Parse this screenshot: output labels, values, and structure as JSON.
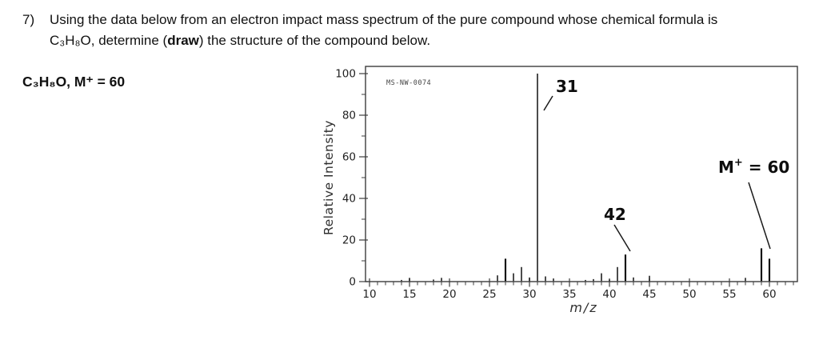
{
  "question": {
    "number": "7)",
    "line1": "Using the data below from an electron impact mass spectrum of the pure compound whose chemical formula is",
    "line2_pre": "C₃H₈O, determine (",
    "line2_bold": "draw",
    "line2_post": ") the structure of the compound below."
  },
  "formula_label": "C₃H₈O, M⁺ = 60",
  "chart_data": {
    "type": "bar",
    "subtype": "mass-spectrum",
    "watermark": "MS-NW-0074",
    "xlabel": "m/z",
    "ylabel": "Relative Intensity",
    "xlim": [
      10,
      63
    ],
    "ylim": [
      0,
      100
    ],
    "grid": false,
    "x_major_ticks": [
      10,
      15,
      20,
      25,
      30,
      35,
      40,
      45,
      50,
      55,
      60
    ],
    "x_minor_tick_step": 1,
    "y_major_ticks": [
      0,
      20,
      40,
      60,
      80,
      100
    ],
    "y_minor_ticks": [
      10,
      30,
      50,
      70,
      90
    ],
    "peaks": [
      {
        "mz": 14,
        "ri": 0.8
      },
      {
        "mz": 15,
        "ri": 1.8
      },
      {
        "mz": 18,
        "ri": 1.0
      },
      {
        "mz": 19,
        "ri": 1.8
      },
      {
        "mz": 26,
        "ri": 3
      },
      {
        "mz": 27,
        "ri": 11
      },
      {
        "mz": 28,
        "ri": 4
      },
      {
        "mz": 29,
        "ri": 7
      },
      {
        "mz": 30,
        "ri": 2
      },
      {
        "mz": 31,
        "ri": 100
      },
      {
        "mz": 32,
        "ri": 2.5
      },
      {
        "mz": 33,
        "ri": 1.5
      },
      {
        "mz": 37,
        "ri": 0.8
      },
      {
        "mz": 38,
        "ri": 1.2
      },
      {
        "mz": 39,
        "ri": 4
      },
      {
        "mz": 40,
        "ri": 1
      },
      {
        "mz": 41,
        "ri": 7
      },
      {
        "mz": 42,
        "ri": 13
      },
      {
        "mz": 43,
        "ri": 2
      },
      {
        "mz": 45,
        "ri": 2.8
      },
      {
        "mz": 57,
        "ri": 1.8
      },
      {
        "mz": 59,
        "ri": 16
      },
      {
        "mz": 60,
        "ri": 11
      }
    ],
    "annotations": [
      {
        "target_mz": 31,
        "parts": [
          {
            "t": "31"
          }
        ]
      },
      {
        "target_mz": 42,
        "parts": [
          {
            "t": "42"
          }
        ]
      },
      {
        "target_mz": 60,
        "parts": [
          {
            "t": "M"
          },
          {
            "t": "+",
            "sup": true
          },
          {
            "t": " = 60"
          }
        ]
      }
    ]
  }
}
